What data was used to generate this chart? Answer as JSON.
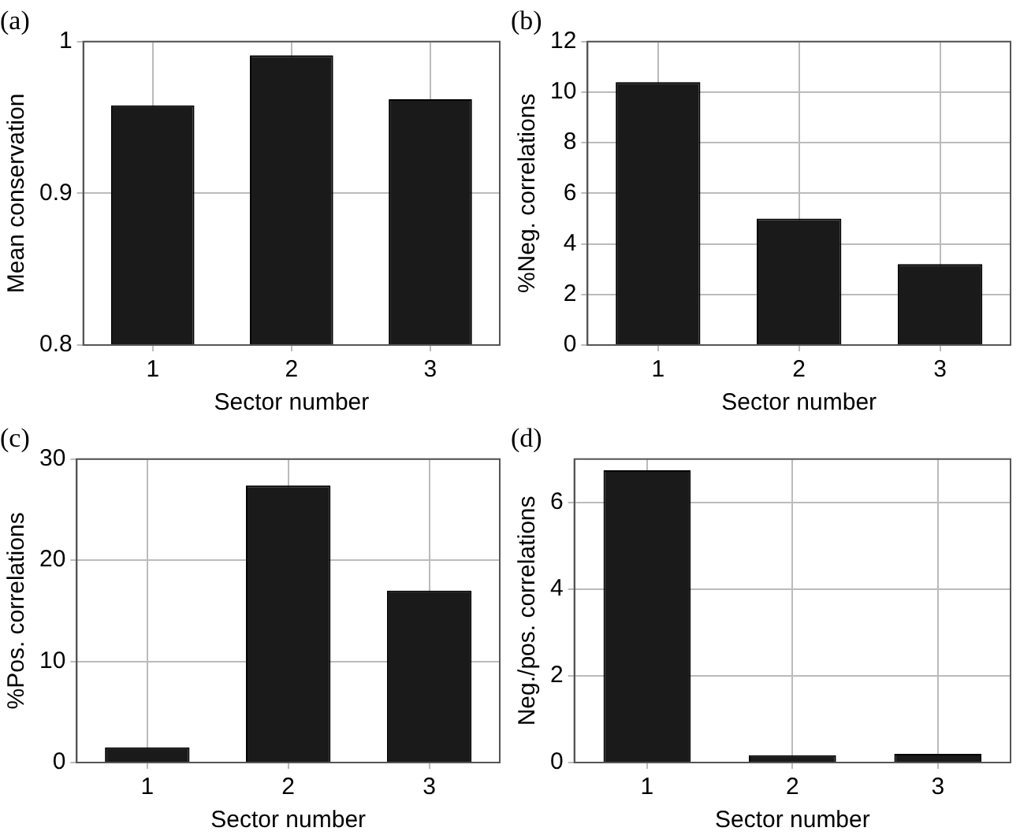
{
  "chart_data": [
    {
      "type": "bar",
      "title": "(a)",
      "xlabel": "Sector number",
      "ylabel": "Mean conservation",
      "categories": [
        "1",
        "2",
        "3"
      ],
      "values": [
        0.958,
        0.991,
        0.962
      ],
      "color": "#1a1a1a",
      "ylim": [
        0.8,
        1
      ],
      "yticks": [
        0.8,
        0.9,
        1
      ],
      "grid": true
    },
    {
      "type": "bar",
      "title": "(b)",
      "xlabel": "Sector number",
      "ylabel": "%Neg. correlations",
      "categories": [
        "1",
        "2",
        "3"
      ],
      "values": [
        10.4,
        5.0,
        3.2
      ],
      "color": "#1a1a1a",
      "ylim": [
        0,
        12
      ],
      "yticks": [
        0,
        2,
        4,
        6,
        8,
        10,
        12
      ],
      "grid": true
    },
    {
      "type": "bar",
      "title": "(c)",
      "xlabel": "Sector number",
      "ylabel": "%Pos. correlations",
      "categories": [
        "1",
        "2",
        "3"
      ],
      "values": [
        1.5,
        27.4,
        17.0
      ],
      "color": "#1a1a1a",
      "ylim": [
        0,
        30
      ],
      "yticks": [
        0,
        10,
        20,
        30
      ],
      "grid": true
    },
    {
      "type": "bar",
      "title": "(d)",
      "xlabel": "Sector number",
      "ylabel": "Neg./pos. correlations",
      "categories": [
        "1",
        "2",
        "3"
      ],
      "values": [
        6.74,
        0.17,
        0.2
      ],
      "color": "#1a1a1a",
      "ylim": [
        0,
        7
      ],
      "yticks": [
        0,
        2,
        4,
        6
      ],
      "grid": true
    }
  ]
}
